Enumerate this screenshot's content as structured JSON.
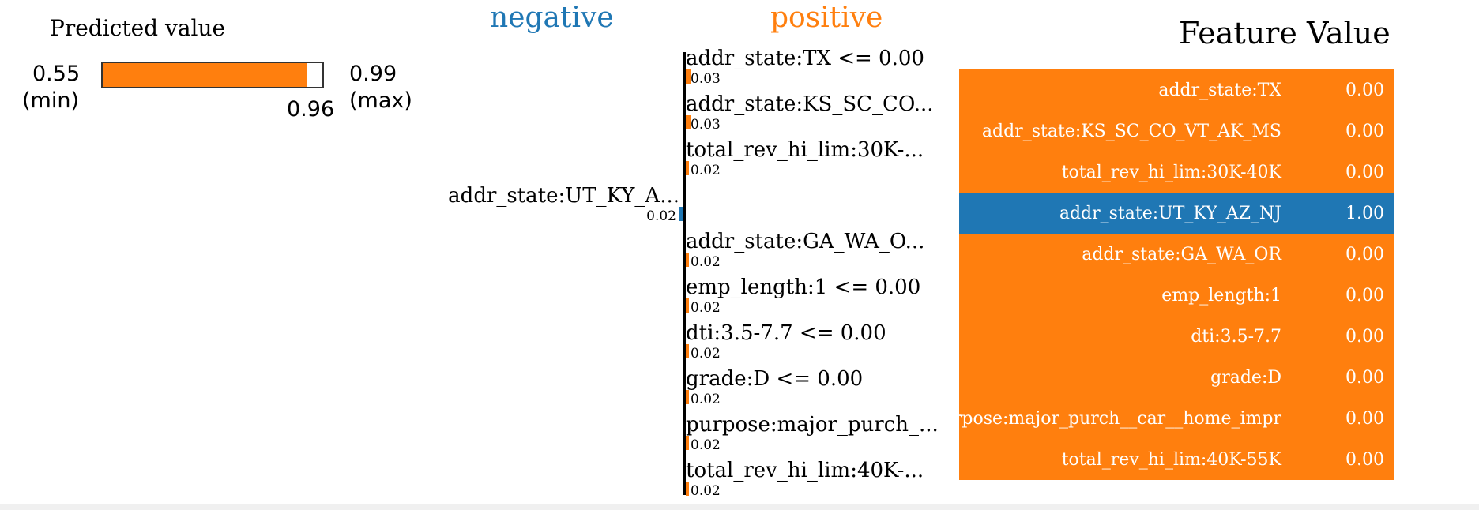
{
  "predicted": {
    "title": "Predicted value",
    "min": "0.55",
    "min_label": "(min)",
    "max": "0.99",
    "max_label": "(max)",
    "value_label": "0.96",
    "value": 0.96,
    "min_value": 0.55,
    "max_value": 0.99
  },
  "headings": {
    "negative": "negative",
    "positive": "positive"
  },
  "colors": {
    "positive": "#ff7f0e",
    "negative": "#1f77b4",
    "axis": "#000000"
  },
  "chart_data": {
    "type": "bar",
    "title": "",
    "orientation": "horizontal",
    "bars": [
      {
        "label": "addr_state:TX <= 0.00",
        "value": 0.03,
        "value_label": "0.03",
        "sign": "positive"
      },
      {
        "label": "addr_state:KS_SC_CO...",
        "value": 0.03,
        "value_label": "0.03",
        "sign": "positive"
      },
      {
        "label": "total_rev_hi_lim:30K-...",
        "value": 0.02,
        "value_label": "0.02",
        "sign": "positive"
      },
      {
        "label": "addr_state:UT_KY_A...",
        "value": 0.02,
        "value_label": "0.02",
        "sign": "negative"
      },
      {
        "label": "addr_state:GA_WA_O...",
        "value": 0.02,
        "value_label": "0.02",
        "sign": "positive"
      },
      {
        "label": "emp_length:1 <= 0.00",
        "value": 0.02,
        "value_label": "0.02",
        "sign": "positive"
      },
      {
        "label": "dti:3.5-7.7 <= 0.00",
        "value": 0.02,
        "value_label": "0.02",
        "sign": "positive"
      },
      {
        "label": "grade:D <= 0.00",
        "value": 0.02,
        "value_label": "0.02",
        "sign": "positive"
      },
      {
        "label": "purpose:major_purch_...",
        "value": 0.02,
        "value_label": "0.02",
        "sign": "positive"
      },
      {
        "label": "total_rev_hi_lim:40K-...",
        "value": 0.02,
        "value_label": "0.02",
        "sign": "positive"
      }
    ]
  },
  "table": {
    "header_feature": "Feature",
    "header_value": "Value",
    "rows": [
      {
        "feature": "addr_state:TX",
        "value": "0.00",
        "sign": "positive"
      },
      {
        "feature": "addr_state:KS_SC_CO_VT_AK_MS",
        "value": "0.00",
        "sign": "positive"
      },
      {
        "feature": "total_rev_hi_lim:30K-40K",
        "value": "0.00",
        "sign": "positive"
      },
      {
        "feature": "addr_state:UT_KY_AZ_NJ",
        "value": "1.00",
        "sign": "negative"
      },
      {
        "feature": "addr_state:GA_WA_OR",
        "value": "0.00",
        "sign": "positive"
      },
      {
        "feature": "emp_length:1",
        "value": "0.00",
        "sign": "positive"
      },
      {
        "feature": "dti:3.5-7.7",
        "value": "0.00",
        "sign": "positive"
      },
      {
        "feature": "grade:D",
        "value": "0.00",
        "sign": "positive"
      },
      {
        "feature": "purpose:major_purch__car__home_impr",
        "value": "0.00",
        "sign": "positive"
      },
      {
        "feature": "total_rev_hi_lim:40K-55K",
        "value": "0.00",
        "sign": "positive"
      }
    ]
  }
}
